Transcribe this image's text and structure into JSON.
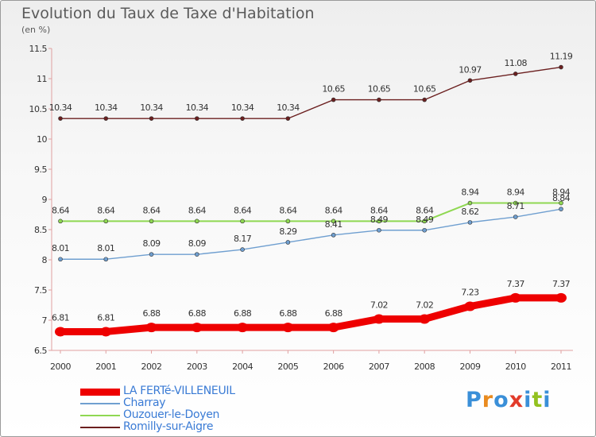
{
  "title": "Evolution du Taux de Taxe d'Habitation",
  "subtitle": "(en %)",
  "logo": {
    "letters": [
      "P",
      "r",
      "o",
      "x",
      "i",
      "t",
      "i"
    ],
    "colors": [
      "#3a8fd8",
      "#e98b1f",
      "#3a8fd8",
      "#e23b2a",
      "#3a8fd8",
      "#93c11f",
      "#3a8fd8"
    ]
  },
  "chart_data": {
    "type": "line",
    "x": [
      2000,
      2001,
      2002,
      2003,
      2004,
      2005,
      2006,
      2007,
      2008,
      2009,
      2010,
      2011
    ],
    "ylim": [
      6.5,
      11.5
    ],
    "yticks": [
      6.5,
      7,
      7.5,
      8,
      8.5,
      9,
      9.5,
      10,
      10.5,
      11,
      11.5
    ],
    "ytick_labels": [
      "6.5",
      "7",
      "7.5",
      "8",
      "8.5",
      "9",
      "9.5",
      "10",
      "10.5",
      "11",
      "11.5"
    ],
    "grid": false,
    "legend": "bottom",
    "series": [
      {
        "name": "Romilly-sur-Aigre",
        "color": "#6b1f1f",
        "width": 1.4,
        "marker": 5,
        "values": [
          10.34,
          10.34,
          10.34,
          10.34,
          10.34,
          10.34,
          10.65,
          10.65,
          10.65,
          10.97,
          11.08,
          11.19
        ],
        "labels": [
          "10.34",
          "10.34",
          "10.34",
          "10.34",
          "10.34",
          "10.34",
          "10.65",
          "10.65",
          "10.65",
          "10.97",
          "11.08",
          "11.19"
        ]
      },
      {
        "name": "Ouzouer-le-Doyen",
        "color": "#8fd852",
        "width": 2,
        "marker": 5,
        "values": [
          8.64,
          8.64,
          8.64,
          8.64,
          8.64,
          8.64,
          8.64,
          8.64,
          8.64,
          8.94,
          8.94,
          8.94
        ],
        "labels": [
          "8.64",
          "8.64",
          "8.64",
          "8.64",
          "8.64",
          "8.64",
          "8.64",
          "8.64",
          "8.64",
          "8.94",
          "8.94",
          "8.94"
        ]
      },
      {
        "name": "Charray",
        "color": "#6f9fd0",
        "width": 1.4,
        "marker": 5,
        "values": [
          8.01,
          8.01,
          8.09,
          8.09,
          8.17,
          8.29,
          8.41,
          8.49,
          8.49,
          8.62,
          8.71,
          8.84
        ],
        "labels": [
          "8.01",
          "8.01",
          "8.09",
          "8.09",
          "8.17",
          "8.29",
          "8.41",
          "8.49",
          "8.49",
          "8.62",
          "8.71",
          "8.84"
        ]
      },
      {
        "name": "LA FERTé-VILLENEUIL",
        "color": "#ee0000",
        "width": 9,
        "marker": 12,
        "values": [
          6.81,
          6.81,
          6.88,
          6.88,
          6.88,
          6.88,
          6.88,
          7.02,
          7.02,
          7.23,
          7.37,
          7.37
        ],
        "labels": [
          "6.81",
          "6.81",
          "6.88",
          "6.88",
          "6.88",
          "6.88",
          "6.88",
          "7.02",
          "7.02",
          "7.23",
          "7.37",
          "7.37"
        ]
      }
    ]
  },
  "legend_items": [
    {
      "label": "LA FERTé-VILLENEUIL",
      "color": "#ee0000",
      "width": 9
    },
    {
      "label": "Charray",
      "color": "#6f9fd0",
      "width": 2
    },
    {
      "label": "Ouzouer-le-Doyen",
      "color": "#8fd852",
      "width": 2
    },
    {
      "label": "Romilly-sur-Aigre",
      "color": "#6b1f1f",
      "width": 2
    }
  ]
}
